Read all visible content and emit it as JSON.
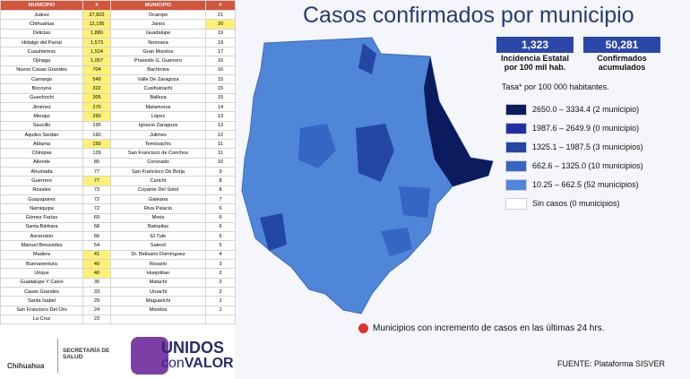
{
  "header": {
    "title": "Casos confirmados por municipio"
  },
  "stats": [
    {
      "value": "1,323",
      "label": "Incidencia Estatal por 100 mil hab."
    },
    {
      "value": "50,281",
      "label": "Confirmados acumulados"
    }
  ],
  "stats_note": "Tasa* por 100 000 habitantes.",
  "legend": [
    {
      "color": "#0c1a5e",
      "label": "2650.0 – 3334.4 (2 municipio)"
    },
    {
      "color": "#1f2fa8",
      "label": "1987.6 – 2649.9 (0 municipio)"
    },
    {
      "color": "#2447a6",
      "label": "1325.1 – 1987.5 (3 municipios)"
    },
    {
      "color": "#3566c4",
      "label": "662.6 – 1325.0 (10 municipios)"
    },
    {
      "color": "#4f86d8",
      "label": "10.25 – 662.5 (52 municipios)"
    },
    {
      "color": "#ffffff",
      "label": "Sin casos (0 municipios)"
    }
  ],
  "red_note": "Municipios con incremento de casos en las últimas 24 hrs.",
  "source": "FUENTE: Plataforma SISVER",
  "table": {
    "headers": [
      "MUNICIPIO",
      "#"
    ],
    "left": [
      [
        "Juárez",
        "27,822",
        true
      ],
      [
        "Chihuahua",
        "12,195",
        true
      ],
      [
        "Delicias",
        "1,880",
        true
      ],
      [
        "Hidalgo del Parral",
        "1,573",
        true
      ],
      [
        "Cuauhtémoc",
        "1,524",
        true
      ],
      [
        "Ojinaga",
        "1,057",
        true
      ],
      [
        "Nuevo Casas Grandes",
        "704",
        true
      ],
      [
        "Camargo",
        "549",
        true
      ],
      [
        "Bocoyna",
        "322",
        true
      ],
      [
        "Guachochi",
        "305",
        true
      ],
      [
        "Jiménez",
        "270",
        true
      ],
      [
        "Meoqui",
        "260",
        true
      ],
      [
        "Saucillo",
        "195",
        false
      ],
      [
        "Aquiles Serdán",
        "160",
        false
      ],
      [
        "Aldama",
        "150",
        true
      ],
      [
        "Chínipas",
        "129",
        false
      ],
      [
        "Allende",
        "85",
        false
      ],
      [
        "Ahumada",
        "77",
        false
      ],
      [
        "Guerrero",
        "77",
        true
      ],
      [
        "Rosales",
        "73",
        false
      ],
      [
        "Guazapares",
        "72",
        false
      ],
      [
        "Namiquipa",
        "72",
        false
      ],
      [
        "Gómez Farías",
        "69",
        false
      ],
      [
        "Santa Bárbara",
        "68",
        false
      ],
      [
        "Ascensión",
        "66",
        false
      ],
      [
        "Manuel Benavides",
        "54",
        false
      ],
      [
        "Madera",
        "41",
        true
      ],
      [
        "Buenaventura",
        "40",
        true
      ],
      [
        "Urique",
        "40",
        true
      ],
      [
        "Guadalupe Y Calvo",
        "35",
        false
      ],
      [
        "Casas Grandes",
        "33",
        false
      ],
      [
        "Santa Isabel",
        "29",
        false
      ],
      [
        "San Francisco Del Oro",
        "24",
        false
      ],
      [
        "La Cruz",
        "23",
        false
      ]
    ],
    "right": [
      [
        "Ocampo",
        "21",
        false
      ],
      [
        "Janos",
        "20",
        true
      ],
      [
        "Guadalupe",
        "19",
        false
      ],
      [
        "Nonoava",
        "19",
        false
      ],
      [
        "Gran Morelos",
        "17",
        false
      ],
      [
        "Praxedis G. Guerrero",
        "16",
        false
      ],
      [
        "Bachíniva",
        "16",
        false
      ],
      [
        "Valle De Zaragoza",
        "15",
        false
      ],
      [
        "Cusihuiriachi",
        "15",
        false
      ],
      [
        "Balleza",
        "15",
        false
      ],
      [
        "Matamoros",
        "14",
        false
      ],
      [
        "López",
        "13",
        false
      ],
      [
        "Ignacio Zaragoza",
        "13",
        false
      ],
      [
        "Julimes",
        "12",
        false
      ],
      [
        "Temósachic",
        "11",
        false
      ],
      [
        "San Francisco de Conchos",
        "11",
        false
      ],
      [
        "Coronado",
        "10",
        false
      ],
      [
        "San Francisco De Borja",
        "9",
        false
      ],
      [
        "Carichí",
        "8",
        false
      ],
      [
        "Coyame Del Sotol",
        "8",
        false
      ],
      [
        "Galeana",
        "7",
        false
      ],
      [
        "Riva Palacio",
        "6",
        false
      ],
      [
        "Moris",
        "6",
        false
      ],
      [
        "Batopilas",
        "6",
        false
      ],
      [
        "El Tule",
        "5",
        false
      ],
      [
        "Satevó",
        "5",
        false
      ],
      [
        "Dr. Belisario Domínguez",
        "4",
        false
      ],
      [
        "Rosario",
        "3",
        false
      ],
      [
        "Huejotitan",
        "2",
        false
      ],
      [
        "Matachí",
        "2",
        false
      ],
      [
        "Uruachi",
        "2",
        false
      ],
      [
        "Maguarichi",
        "1",
        false
      ],
      [
        "Morelos",
        "1",
        false
      ]
    ]
  },
  "footer": {
    "state": "Chihuahua",
    "dept": "SECRETARÍA DE SALUD",
    "brand1": "UNIDOS",
    "brand2": "con",
    "brand3": "VALOR"
  }
}
